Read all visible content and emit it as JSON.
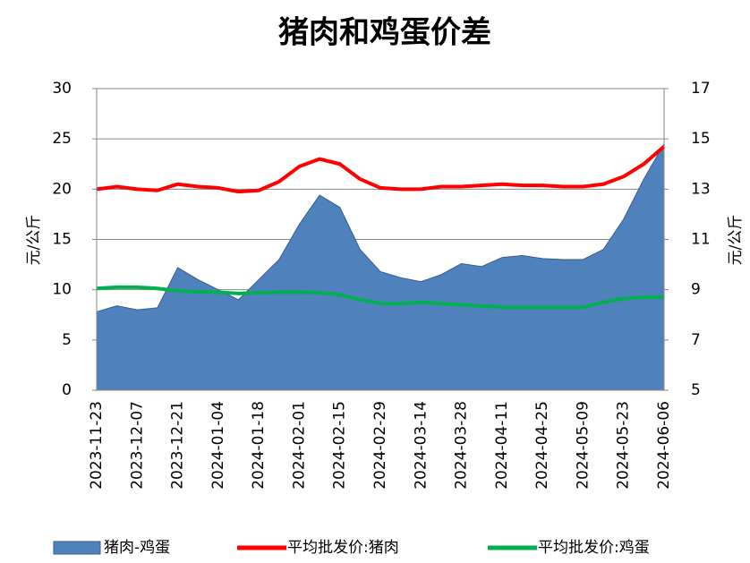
{
  "chart_data": {
    "type": "area-line",
    "title": "猪肉和鸡蛋价差",
    "y_label": "元/公斤",
    "y2_label": "元/公斤",
    "categories": [
      "2023-11-23",
      null,
      "2023-12-07",
      null,
      "2023-12-21",
      null,
      "2024-01-04",
      null,
      "2024-01-18",
      null,
      "2024-02-01",
      null,
      "2024-02-15",
      null,
      "2024-02-29",
      null,
      "2024-03-14",
      null,
      "2024-03-28",
      null,
      "2024-04-11",
      null,
      "2024-04-25",
      null,
      "2024-05-09",
      null,
      "2024-05-23",
      null,
      "2024-06-06"
    ],
    "ylim": [
      0,
      30
    ],
    "yticks": [
      0,
      5,
      10,
      15,
      20,
      25,
      30
    ],
    "y2lim": [
      5,
      17
    ],
    "y2ticks": [
      5,
      7,
      9,
      11,
      13,
      15,
      17
    ],
    "grid": true,
    "legend": "bottom",
    "series": [
      {
        "name": "猪肉-鸡蛋",
        "type": "area",
        "color": "#4f81bd",
        "axis": "y",
        "values": [
          7.8,
          8.4,
          8.0,
          8.2,
          12.2,
          11.0,
          10.0,
          9.0,
          11.0,
          13.0,
          16.5,
          19.4,
          18.2,
          14.0,
          11.8,
          11.2,
          10.8,
          11.5,
          12.6,
          12.3,
          13.2,
          13.4,
          13.1,
          13.0,
          13.0,
          14.0,
          17.0,
          21.0,
          24.5
        ]
      },
      {
        "name": "平均批发价:猪肉",
        "type": "line",
        "color": "#ff0000",
        "axis": "y2",
        "values": [
          13.0,
          13.1,
          13.0,
          12.95,
          13.2,
          13.1,
          13.05,
          12.9,
          12.95,
          13.3,
          13.9,
          14.2,
          14.0,
          13.4,
          13.05,
          13.0,
          13.0,
          13.1,
          13.1,
          13.15,
          13.2,
          13.15,
          13.15,
          13.1,
          13.1,
          13.2,
          13.5,
          14.0,
          14.7
        ]
      },
      {
        "name": "平均批发价:鸡蛋",
        "type": "line",
        "color": "#00b050",
        "axis": "y2",
        "values": [
          9.05,
          9.1,
          9.1,
          9.05,
          8.95,
          8.92,
          8.9,
          8.85,
          8.88,
          8.9,
          8.9,
          8.88,
          8.8,
          8.6,
          8.45,
          8.45,
          8.5,
          8.45,
          8.4,
          8.35,
          8.3,
          8.3,
          8.3,
          8.3,
          8.3,
          8.5,
          8.65,
          8.7,
          8.7
        ]
      }
    ]
  }
}
